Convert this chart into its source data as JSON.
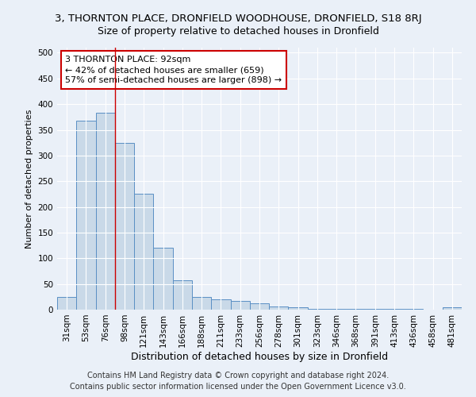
{
  "title": "3, THORNTON PLACE, DRONFIELD WOODHOUSE, DRONFIELD, S18 8RJ",
  "subtitle": "Size of property relative to detached houses in Dronfield",
  "xlabel": "Distribution of detached houses by size in Dronfield",
  "ylabel": "Number of detached properties",
  "footer_line1": "Contains HM Land Registry data © Crown copyright and database right 2024.",
  "footer_line2": "Contains public sector information licensed under the Open Government Licence v3.0.",
  "categories": [
    "31sqm",
    "53sqm",
    "76sqm",
    "98sqm",
    "121sqm",
    "143sqm",
    "166sqm",
    "188sqm",
    "211sqm",
    "233sqm",
    "256sqm",
    "278sqm",
    "301sqm",
    "323sqm",
    "346sqm",
    "368sqm",
    "391sqm",
    "413sqm",
    "436sqm",
    "458sqm",
    "481sqm"
  ],
  "values": [
    25,
    368,
    383,
    325,
    225,
    120,
    57,
    25,
    20,
    17,
    13,
    6,
    4,
    2,
    2,
    1,
    1,
    1,
    1,
    0,
    4
  ],
  "bar_color": "#c9d9e8",
  "bar_edge_color": "#5a8fc4",
  "vline_x_index": 2.5,
  "vline_color": "#cc0000",
  "annotation_line1": "3 THORNTON PLACE: 92sqm",
  "annotation_line2": "← 42% of detached houses are smaller (659)",
  "annotation_line3": "57% of semi-detached houses are larger (898) →",
  "annotation_box_color": "#ffffff",
  "annotation_box_edge": "#cc0000",
  "ylim": [
    0,
    510
  ],
  "yticks": [
    0,
    50,
    100,
    150,
    200,
    250,
    300,
    350,
    400,
    450,
    500
  ],
  "bg_color": "#eaf0f8",
  "plot_bg_color": "#eaf0f8",
  "title_fontsize": 9.5,
  "subtitle_fontsize": 9,
  "xlabel_fontsize": 9,
  "ylabel_fontsize": 8,
  "tick_fontsize": 7.5,
  "footer_fontsize": 7,
  "annotation_fontsize": 8
}
